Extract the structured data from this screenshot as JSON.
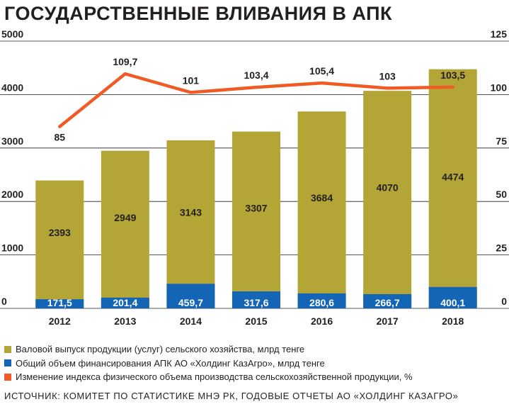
{
  "colors": {
    "gross_output": "#b3a636",
    "financing": "#1565b6",
    "index": "#f05a24",
    "text": "#231f20",
    "grid": "#231f20"
  },
  "chart_data": {
    "type": "bar",
    "title": "ГОСУДАРСТВЕННЫЕ ВЛИВАНИЯ В АПК",
    "categories": [
      "2012",
      "2013",
      "2014",
      "2015",
      "2016",
      "2017",
      "2018"
    ],
    "series": [
      {
        "name": "Валовой выпуск продукции (услуг) сельского хозяйства, млрд тенге",
        "type": "bar",
        "axis": "left",
        "values": [
          2393,
          2949,
          3143,
          3307,
          3684,
          4070,
          4474
        ],
        "labels": [
          "2393",
          "2949",
          "3143",
          "3307",
          "3684",
          "4070",
          "4474"
        ]
      },
      {
        "name": "Общий объем финансирования АПК АО «Холдинг КазАгро», млрд тенге",
        "type": "bar",
        "axis": "left",
        "values": [
          171.5,
          201.4,
          459.7,
          317.6,
          280.6,
          266.7,
          400.1
        ],
        "labels": [
          "171,5",
          "201,4",
          "459,7",
          "317,6",
          "280,6",
          "266,7",
          "400,1"
        ]
      },
      {
        "name": "Изменение индекса физического объема производства сельскохозяйственной продукции, %",
        "type": "line",
        "axis": "right",
        "values": [
          85,
          109.7,
          101,
          103.4,
          105.4,
          103,
          103.5
        ],
        "labels": [
          "85",
          "109,7",
          "101",
          "103,4",
          "105,4",
          "103",
          "103,5"
        ]
      }
    ],
    "ylim_left": [
      0,
      5000
    ],
    "yticks_left": [
      "0",
      "1000",
      "2000",
      "3000",
      "4000",
      "5000"
    ],
    "ylim_right": [
      0,
      125
    ],
    "yticks_right": [
      "0",
      "25",
      "50",
      "75",
      "100",
      "125"
    ],
    "grid": true,
    "legend_position": "bottom"
  },
  "source": "ИСТОЧНИК: КОМИТЕТ ПО СТАТИСТИКЕ МНЭ РК, ГОДОВЫЕ ОТЧЕТЫ АО «ХОЛДИНГ КАЗАГРО»"
}
